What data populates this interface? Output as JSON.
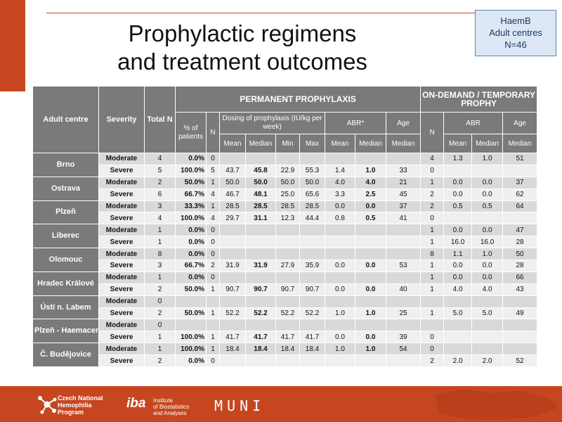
{
  "title": {
    "line1": "Prophylactic regimens",
    "line2": "and treatment outcomes"
  },
  "info_box": {
    "line1": "HaemB",
    "line2": "Adult centres",
    "line3": "N=46"
  },
  "table": {
    "headers": {
      "adult_centre": "Adult centre",
      "severity": "Severity",
      "total_n": "Total N",
      "permanent": "PERMANENT PROPHYLAXIS",
      "on_demand": "ON-DEMAND / TEMPORARY PROPHY",
      "pct_patients": "% of patients",
      "n": "N",
      "dosing": "Dosing of prophylaxis (IU/kg per week)",
      "abr_star": "ABR*",
      "age": "Age",
      "od_n": "N",
      "od_abr": "ABR",
      "od_age": "Age",
      "mean": "Mean",
      "median": "Median",
      "min": "Min",
      "max": "Max",
      "abr_mean": "Mean",
      "abr_median": "Median",
      "age_median": "Median",
      "od_abr_mean": "Mean",
      "od_abr_median": "Median",
      "od_age_median": "Median"
    },
    "centres": [
      {
        "name": "Brno",
        "rows": [
          {
            "severity": "Moderate",
            "total": "4",
            "pct": "0.0%",
            "n": "0",
            "mean": "",
            "median": "",
            "min": "",
            "max": "",
            "abr_mean": "",
            "abr_median": "",
            "age": "",
            "od_n": "4",
            "od_abr_mean": "1.3",
            "od_abr_median": "1.0",
            "od_age": "51"
          },
          {
            "severity": "Severe",
            "total": "5",
            "pct": "100.0%",
            "n": "5",
            "mean": "43.7",
            "median": "45.8",
            "min": "22.9",
            "max": "55.3",
            "abr_mean": "1.4",
            "abr_median": "1.0",
            "age": "33",
            "od_n": "0",
            "od_abr_mean": "",
            "od_abr_median": "",
            "od_age": ""
          }
        ]
      },
      {
        "name": "Ostrava",
        "rows": [
          {
            "severity": "Moderate",
            "total": "2",
            "pct": "50.0%",
            "n": "1",
            "mean": "50.0",
            "median": "50.0",
            "min": "50.0",
            "max": "50.0",
            "abr_mean": "4.0",
            "abr_median": "4.0",
            "age": "21",
            "od_n": "1",
            "od_abr_mean": "0.0",
            "od_abr_median": "0.0",
            "od_age": "37"
          },
          {
            "severity": "Severe",
            "total": "6",
            "pct": "66.7%",
            "n": "4",
            "mean": "46.7",
            "median": "48.1",
            "min": "25.0",
            "max": "65.6",
            "abr_mean": "3.3",
            "abr_median": "2.5",
            "age": "45",
            "od_n": "2",
            "od_abr_mean": "0.0",
            "od_abr_median": "0.0",
            "od_age": "62"
          }
        ]
      },
      {
        "name": "Plzeň",
        "rows": [
          {
            "severity": "Moderate",
            "total": "3",
            "pct": "33.3%",
            "n": "1",
            "mean": "28.5",
            "median": "28.5",
            "min": "28.5",
            "max": "28.5",
            "abr_mean": "0.0",
            "abr_median": "0.0",
            "age": "37",
            "od_n": "2",
            "od_abr_mean": "0.5",
            "od_abr_median": "0.5",
            "od_age": "64"
          },
          {
            "severity": "Severe",
            "total": "4",
            "pct": "100.0%",
            "n": "4",
            "mean": "29.7",
            "median": "31.1",
            "min": "12.3",
            "max": "44.4",
            "abr_mean": "0.8",
            "abr_median": "0.5",
            "age": "41",
            "od_n": "0",
            "od_abr_mean": "",
            "od_abr_median": "",
            "od_age": ""
          }
        ]
      },
      {
        "name": "Liberec",
        "rows": [
          {
            "severity": "Moderate",
            "total": "1",
            "pct": "0.0%",
            "n": "0",
            "mean": "",
            "median": "",
            "min": "",
            "max": "",
            "abr_mean": "",
            "abr_median": "",
            "age": "",
            "od_n": "1",
            "od_abr_mean": "0.0",
            "od_abr_median": "0.0",
            "od_age": "47"
          },
          {
            "severity": "Severe",
            "total": "1",
            "pct": "0.0%",
            "n": "0",
            "mean": "",
            "median": "",
            "min": "",
            "max": "",
            "abr_mean": "",
            "abr_median": "",
            "age": "",
            "od_n": "1",
            "od_abr_mean": "16.0",
            "od_abr_median": "16.0",
            "od_age": "28"
          }
        ]
      },
      {
        "name": "Olomouc",
        "rows": [
          {
            "severity": "Moderate",
            "total": "8",
            "pct": "0.0%",
            "n": "0",
            "mean": "",
            "median": "",
            "min": "",
            "max": "",
            "abr_mean": "",
            "abr_median": "",
            "age": "",
            "od_n": "8",
            "od_abr_mean": "1.1",
            "od_abr_median": "1.0",
            "od_age": "50"
          },
          {
            "severity": "Severe",
            "total": "3",
            "pct": "66.7%",
            "n": "2",
            "mean": "31.9",
            "median": "31.9",
            "min": "27.9",
            "max": "35.9",
            "abr_mean": "0.0",
            "abr_median": "0.0",
            "age": "53",
            "od_n": "1",
            "od_abr_mean": "0.0",
            "od_abr_median": "0.0",
            "od_age": "28"
          }
        ]
      },
      {
        "name": "Hradec Králové",
        "rows": [
          {
            "severity": "Moderate",
            "total": "1",
            "pct": "0.0%",
            "n": "0",
            "mean": "",
            "median": "",
            "min": "",
            "max": "",
            "abr_mean": "",
            "abr_median": "",
            "age": "",
            "od_n": "1",
            "od_abr_mean": "0.0",
            "od_abr_median": "0.0",
            "od_age": "66"
          },
          {
            "severity": "Severe",
            "total": "2",
            "pct": "50.0%",
            "n": "1",
            "mean": "90.7",
            "median": "90.7",
            "min": "90.7",
            "max": "90.7",
            "abr_mean": "0.0",
            "abr_median": "0.0",
            "age": "40",
            "od_n": "1",
            "od_abr_mean": "4.0",
            "od_abr_median": "4.0",
            "od_age": "43"
          }
        ]
      },
      {
        "name": "Ústí n. Labem",
        "rows": [
          {
            "severity": "Moderate",
            "total": "0",
            "pct": "",
            "n": "",
            "mean": "",
            "median": "",
            "min": "",
            "max": "",
            "abr_mean": "",
            "abr_median": "",
            "age": "",
            "od_n": "",
            "od_abr_mean": "",
            "od_abr_median": "",
            "od_age": ""
          },
          {
            "severity": "Severe",
            "total": "2",
            "pct": "50.0%",
            "n": "1",
            "mean": "52.2",
            "median": "52.2",
            "min": "52.2",
            "max": "52.2",
            "abr_mean": "1.0",
            "abr_median": "1.0",
            "age": "25",
            "od_n": "1",
            "od_abr_mean": "5.0",
            "od_abr_median": "5.0",
            "od_age": "49"
          }
        ]
      },
      {
        "name": "Plzeň - Haemacentre",
        "rows": [
          {
            "severity": "Moderate",
            "total": "0",
            "pct": "",
            "n": "",
            "mean": "",
            "median": "",
            "min": "",
            "max": "",
            "abr_mean": "",
            "abr_median": "",
            "age": "",
            "od_n": "",
            "od_abr_mean": "",
            "od_abr_median": "",
            "od_age": ""
          },
          {
            "severity": "Severe",
            "total": "1",
            "pct": "100.0%",
            "n": "1",
            "mean": "41.7",
            "median": "41.7",
            "min": "41.7",
            "max": "41.7",
            "abr_mean": "0.0",
            "abr_median": "0.0",
            "age": "39",
            "od_n": "0",
            "od_abr_mean": "",
            "od_abr_median": "",
            "od_age": ""
          }
        ]
      },
      {
        "name": "Č. Budějovice",
        "rows": [
          {
            "severity": "Moderate",
            "total": "1",
            "pct": "100.0%",
            "n": "1",
            "mean": "18.4",
            "median": "18.4",
            "min": "18.4",
            "max": "18.4",
            "abr_mean": "1.0",
            "abr_median": "1.0",
            "age": "54",
            "od_n": "0",
            "od_abr_mean": "",
            "od_abr_median": "",
            "od_age": ""
          },
          {
            "severity": "Severe",
            "total": "2",
            "pct": "0.0%",
            "n": "0",
            "mean": "",
            "median": "",
            "min": "",
            "max": "",
            "abr_mean": "",
            "abr_median": "",
            "age": "",
            "od_n": "2",
            "od_abr_mean": "2.0",
            "od_abr_median": "2.0",
            "od_age": "52"
          }
        ]
      }
    ]
  },
  "footer": {
    "program_line1": "Czech National",
    "program_line2": "Hemophilia",
    "program_line3": "Program",
    "iba_mark": "iba",
    "iba_line1": "Institute",
    "iba_line2": "of Biostatistics",
    "iba_line3": "and Analyses",
    "muni": "MUNI"
  },
  "colors": {
    "accent": "#c5461f",
    "header_gray": "#7a7a7a",
    "row_dark": "#d9d9d9",
    "row_light": "#efefef",
    "info_box": "#dce6f4"
  }
}
